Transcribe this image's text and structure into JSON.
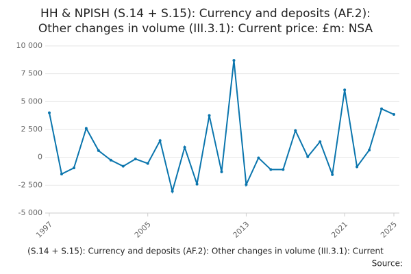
{
  "chart_data": {
    "type": "line",
    "title": [
      "HH & NPISH (S.14 + S.15): Currency and deposits (AF.2):",
      "Other changes in volume (III.3.1): Current price: £m: NSA"
    ],
    "caption": "(S.14 + S.15): Currency and deposits (AF.2): Other changes in volume (III.3.1): Current",
    "source": "Source:",
    "x": [
      1997,
      1998,
      1999,
      2000,
      2001,
      2002,
      2003,
      2004,
      2005,
      2006,
      2007,
      2008,
      2009,
      2010,
      2011,
      2012,
      2013,
      2014,
      2015,
      2016,
      2017,
      2018,
      2019,
      2020,
      2021,
      2022,
      2023,
      2024,
      2025
    ],
    "series": [
      {
        "color": "#0a75ad",
        "values": [
          4000,
          -1500,
          -950,
          2600,
          600,
          -250,
          -800,
          -150,
          -550,
          1500,
          -3050,
          900,
          -2400,
          3750,
          -1300,
          8700,
          -2450,
          -50,
          -1100,
          -1100,
          2400,
          50,
          1400,
          -1550,
          6050,
          -850,
          650,
          4350,
          3850
        ]
      }
    ],
    "xlim": [
      1997,
      2025
    ],
    "xticks": [
      1997,
      2005,
      2013,
      2021,
      2025
    ],
    "ylim": [
      -5000,
      10000
    ],
    "yticks": [
      {
        "value": -5000,
        "label": "-5 000"
      },
      {
        "value": -2500,
        "label": "-2 500"
      },
      0,
      {
        "value": 2500,
        "label": "2 500"
      },
      {
        "value": 5000,
        "label": "5 000"
      },
      {
        "value": 7500,
        "label": "7 500"
      },
      {
        "value": 10000,
        "label": "10 000"
      }
    ],
    "grid": true
  }
}
